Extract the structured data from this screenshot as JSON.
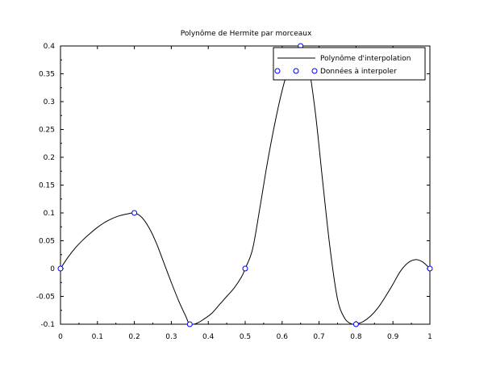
{
  "chart_data": {
    "type": "line",
    "title": "Polynôme de Hermite par morceaux",
    "xlabel": "",
    "ylabel": "",
    "xlim": [
      0,
      1
    ],
    "ylim": [
      -0.1,
      0.4
    ],
    "x_ticks": [
      0,
      0.1,
      0.2,
      0.3,
      0.4,
      0.5,
      0.6,
      0.7,
      0.8,
      0.9,
      1
    ],
    "x_tick_labels": [
      "0",
      "0.1",
      "0.2",
      "0.3",
      "0.4",
      "0.5",
      "0.6",
      "0.7",
      "0.8",
      "0.9",
      "1"
    ],
    "y_ticks": [
      -0.1,
      -0.05,
      0,
      0.05,
      0.1,
      0.15,
      0.2,
      0.25,
      0.3,
      0.35,
      0.4
    ],
    "y_tick_labels": [
      "-0.1",
      "-0.05",
      "0",
      "0.05",
      "0.1",
      "0.15",
      "0.2",
      "0.25",
      "0.3",
      "0.35",
      "0.4"
    ],
    "grid": false,
    "legend_position": "top-right",
    "series": [
      {
        "name": "Polynôme d'interpolation",
        "kind": "line",
        "color": "#000000",
        "x": [
          0,
          0.02,
          0.04,
          0.06,
          0.08,
          0.1,
          0.12,
          0.14,
          0.16,
          0.18,
          0.2,
          0.22,
          0.24,
          0.26,
          0.28,
          0.3,
          0.32,
          0.34,
          0.35,
          0.37,
          0.39,
          0.41,
          0.43,
          0.45,
          0.47,
          0.49,
          0.5,
          0.52,
          0.54,
          0.56,
          0.58,
          0.6,
          0.62,
          0.64,
          0.65,
          0.67,
          0.69,
          0.71,
          0.73,
          0.75,
          0.77,
          0.79,
          0.8,
          0.82,
          0.84,
          0.86,
          0.88,
          0.9,
          0.92,
          0.94,
          0.96,
          0.98,
          1
        ],
        "y": [
          0,
          0.02,
          0.037,
          0.051,
          0.063,
          0.074,
          0.083,
          0.09,
          0.095,
          0.098,
          0.1,
          0.092,
          0.073,
          0.045,
          0.01,
          -0.025,
          -0.058,
          -0.087,
          -0.1,
          -0.098,
          -0.09,
          -0.08,
          -0.065,
          -0.05,
          -0.035,
          -0.015,
          0,
          0.035,
          0.11,
          0.19,
          0.26,
          0.32,
          0.365,
          0.39,
          0.4,
          0.37,
          0.28,
          0.155,
          0.035,
          -0.055,
          -0.09,
          -0.1,
          -0.1,
          -0.095,
          -0.085,
          -0.07,
          -0.05,
          -0.028,
          -0.005,
          0.01,
          0.016,
          0.012,
          0
        ]
      },
      {
        "name": "Données à interpoler",
        "kind": "markers",
        "color": "#0000ff",
        "x": [
          0,
          0.2,
          0.35,
          0.5,
          0.65,
          0.8,
          1
        ],
        "y": [
          0,
          0.1,
          -0.1,
          0,
          0.4,
          -0.1,
          0
        ]
      }
    ]
  }
}
